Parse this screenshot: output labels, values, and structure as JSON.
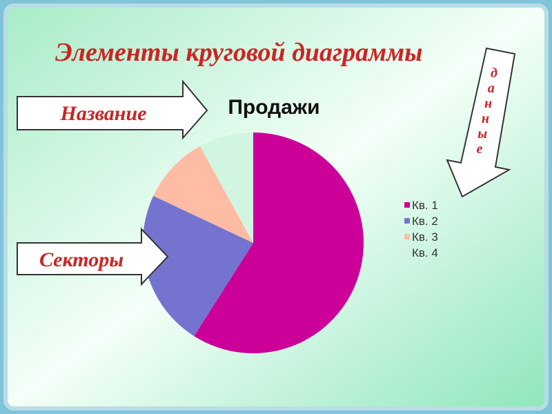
{
  "heading": "Элементы  круговой диаграммы",
  "callouts": {
    "title": "Название",
    "sectors": "Секторы",
    "data": "данные"
  },
  "chart_data": {
    "type": "pie",
    "title": "Продажи",
    "categories": [
      "Кв. 1",
      "Кв. 2",
      "Кв. 3",
      "Кв. 4"
    ],
    "values": [
      59,
      23,
      10,
      8
    ],
    "colors": [
      "#cc0099",
      "#7474d0",
      "#ffbca4",
      "#d2f5e2"
    ],
    "legend": "right"
  }
}
